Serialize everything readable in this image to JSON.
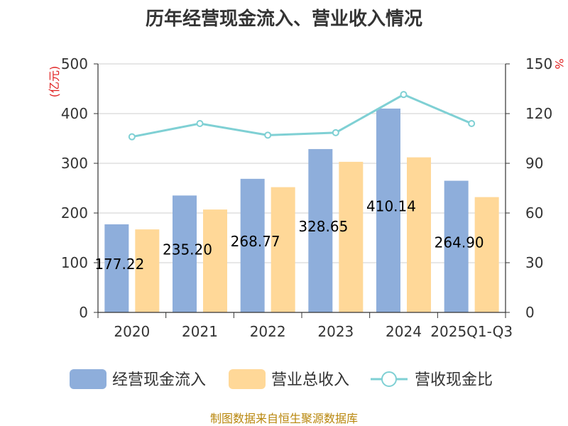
{
  "chart_data": {
    "type": "bar",
    "title": "历年经营现金流入、营业收入情况",
    "categories": [
      "2020",
      "2021",
      "2022",
      "2023",
      "2024",
      "2025Q1-Q3"
    ],
    "series": [
      {
        "name": "经营现金流入",
        "type": "bar",
        "axis": "left",
        "color": "#8eaedb",
        "values": [
          177.22,
          235.2,
          268.77,
          328.65,
          410.14,
          264.9
        ],
        "labels": [
          "177.22",
          "235.20",
          "268.77",
          "328.65",
          "410.14",
          "264.90"
        ]
      },
      {
        "name": "营业总收入",
        "type": "bar",
        "axis": "left",
        "color": "#ffd898",
        "values": [
          167,
          207,
          252,
          303,
          312,
          232
        ]
      },
      {
        "name": "营收现金比",
        "type": "line",
        "axis": "right",
        "color": "#7fd0d4",
        "values": [
          106,
          114,
          107,
          108.5,
          131.5,
          114
        ]
      }
    ],
    "y_left": {
      "unit": "(亿元)",
      "ylim": [
        0,
        500
      ],
      "ticks": [
        "0",
        "100",
        "200",
        "300",
        "400",
        "500"
      ]
    },
    "y_right": {
      "unit": "%",
      "ylim": [
        0,
        150
      ],
      "ticks": [
        "0",
        "30",
        "60",
        "90",
        "120",
        "150"
      ]
    },
    "grid": true,
    "legend_position": "bottom",
    "source": "制图数据来自恒生聚源数据库"
  }
}
